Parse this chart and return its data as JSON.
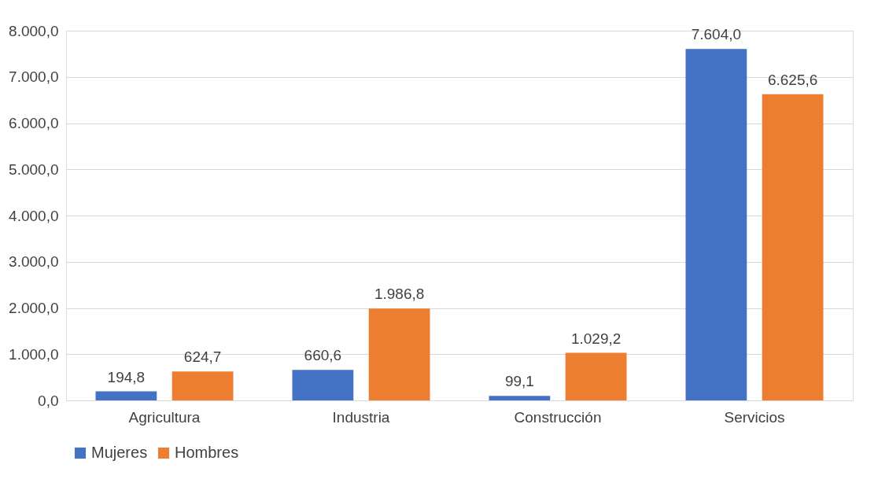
{
  "chart_data": {
    "type": "bar",
    "categories": [
      "Agricultura",
      "Industria",
      "Construcción",
      "Servicios"
    ],
    "series": [
      {
        "name": "Mujeres",
        "color": "#4472c4",
        "values": [
          194.8,
          660.6,
          99.1,
          7604.0
        ],
        "value_labels": [
          "194,8",
          "660,6",
          "99,1",
          "7.604,0"
        ]
      },
      {
        "name": "Hombres",
        "color": "#ed7d31",
        "values": [
          624.7,
          1986.8,
          1029.2,
          6625.6
        ],
        "value_labels": [
          "624,7",
          "1.986,8",
          "1.029,2",
          "6.625,6"
        ]
      }
    ],
    "ylim": [
      0,
      8000
    ],
    "yticks": [
      {
        "value": 0,
        "label": "0,0"
      },
      {
        "value": 1000,
        "label": "1.000,0"
      },
      {
        "value": 2000,
        "label": "2.000,0"
      },
      {
        "value": 3000,
        "label": "3.000,0"
      },
      {
        "value": 4000,
        "label": "4.000,0"
      },
      {
        "value": 5000,
        "label": "5.000,0"
      },
      {
        "value": 6000,
        "label": "6.000,0"
      },
      {
        "value": 7000,
        "label": "7.000,0"
      },
      {
        "value": 8000,
        "label": "8.000,0"
      }
    ],
    "grid": "y",
    "legend": "bottom"
  }
}
